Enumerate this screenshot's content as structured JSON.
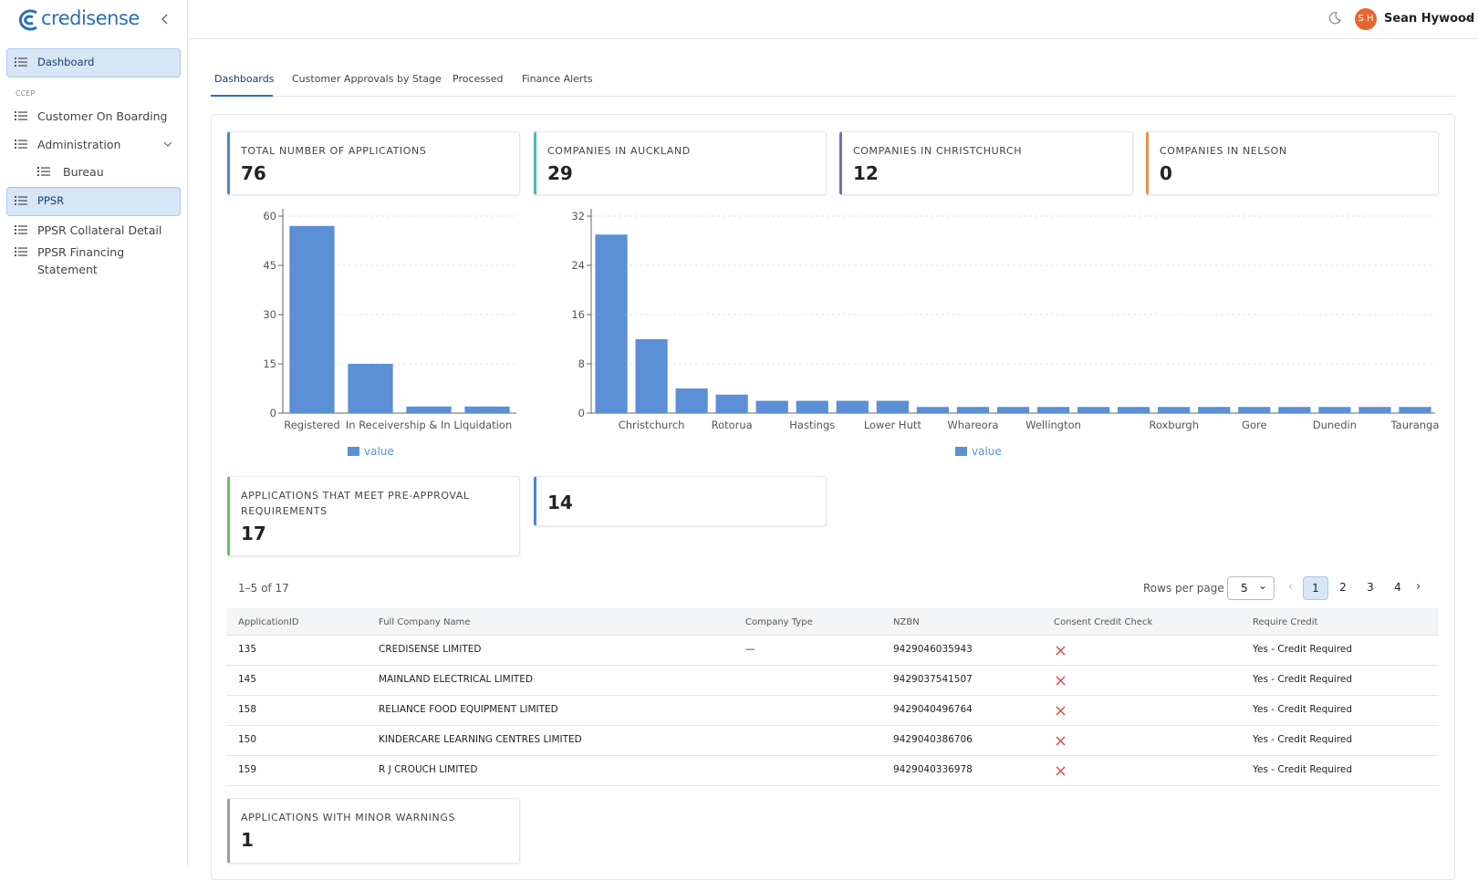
{
  "brand": "credisense",
  "user": {
    "initials": "S H",
    "name": "Sean Hywood"
  },
  "sidebar": {
    "section": "CCEP",
    "items": [
      {
        "label": "Dashboard",
        "active": true
      },
      {
        "label": "Customer On Boarding"
      },
      {
        "label": "Administration",
        "expandable": true
      },
      {
        "label": "Bureau",
        "sub": true
      },
      {
        "label": "PPSR",
        "active": true
      },
      {
        "label": "PPSR Collateral Detail"
      },
      {
        "label": "PPSR Financing Statement"
      }
    ]
  },
  "tabs": [
    "Dashboards",
    "Customer Approvals by Stage",
    "Processed",
    "Finance Alerts"
  ],
  "cards": [
    {
      "label": "TOTAL NUMBER OF APPLICATIONS",
      "value": 76,
      "color": "#4a86d4"
    },
    {
      "label": "COMPANIES IN AUCKLAND",
      "value": 29,
      "color": "#4fb8a8"
    },
    {
      "label": "COMPANIES IN CHRISTCHURCH",
      "value": 12,
      "color": "#7b68c8"
    },
    {
      "label": "COMPANIES IN NELSON",
      "value": 0,
      "color": "#e8934a"
    },
    {
      "label": "APPLICATIONS THAT MEET PRE-APPROVAL REQUIREMENTS",
      "value": 17,
      "color": "#6cbf6c"
    },
    {
      "value": 14,
      "color": "#4a86d4"
    },
    {
      "label": "APPLICATIONS WITH MINOR WARNINGS",
      "value": 1,
      "color": "#9e9e9e"
    }
  ],
  "chart_data": [
    {
      "type": "bar",
      "categories": [
        "Registered",
        null,
        "In Receivership & In Liquidation",
        null
      ],
      "series": [
        {
          "name": "value",
          "color": "#5b8fd6",
          "values": [
            57,
            15,
            2,
            2
          ]
        }
      ],
      "ylim": [
        0,
        60
      ],
      "yticks": [
        0,
        15,
        30,
        45,
        60
      ],
      "grid": true
    },
    {
      "type": "bar",
      "categories": [
        null,
        "Christchurch",
        null,
        "Rotorua",
        null,
        "Hastings",
        null,
        "Lower Hutt",
        null,
        "Whareora",
        null,
        "Wellington",
        null,
        null,
        "Roxburgh",
        null,
        "Gore",
        null,
        "Dunedin",
        null,
        "Tauranga"
      ],
      "series": [
        {
          "name": "value",
          "color": "#5b8fd6",
          "values": [
            29,
            12,
            4,
            3,
            2,
            2,
            2,
            2,
            1,
            1,
            1,
            1,
            1,
            1,
            1,
            1,
            1,
            1,
            1,
            1,
            1
          ]
        }
      ],
      "ylim": [
        0,
        32
      ],
      "yticks": [
        0,
        8,
        16,
        24,
        32
      ],
      "grid": true
    }
  ],
  "table": {
    "range": "1–5 of 17",
    "rows_per_page_label": "Rows per page",
    "rows_per_page": "5",
    "pages": [
      1,
      2,
      3,
      4
    ],
    "columns": [
      "ApplicationID",
      "Full Company Name",
      "Company Type",
      "NZBN",
      "Consent Credit Check",
      "Require Credit"
    ],
    "rows": [
      {
        "id": "135",
        "name": "CREDISENSE LIMITED",
        "type": "—",
        "nzbn": "9429046035943",
        "require": "Yes - Credit Required"
      },
      {
        "id": "145",
        "name": "MAINLAND ELECTRICAL LIMITED",
        "nzbn": "9429037541507",
        "require": "Yes - Credit Required"
      },
      {
        "id": "158",
        "name": "RELIANCE FOOD EQUIPMENT LIMITED",
        "nzbn": "9429040496764",
        "require": "Yes - Credit Required"
      },
      {
        "id": "150",
        "name": "KINDERCARE LEARNING CENTRES LIMITED",
        "nzbn": "9429040386706",
        "require": "Yes - Credit Required"
      },
      {
        "id": "159",
        "name": "R J CROUCH LIMITED",
        "nzbn": "9429040336978",
        "require": "Yes - Credit Required"
      }
    ]
  }
}
